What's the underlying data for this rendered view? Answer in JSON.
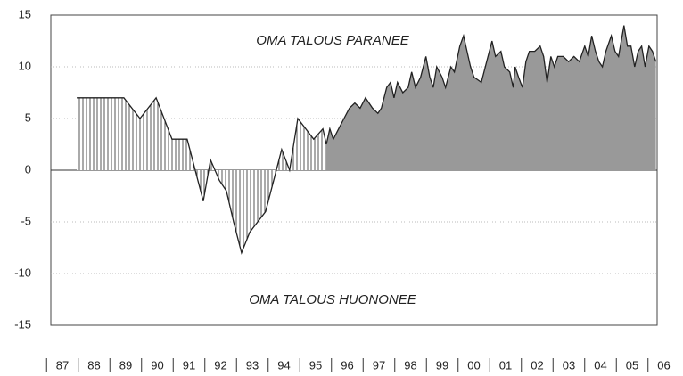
{
  "chart_data": {
    "type": "area",
    "annotations": [
      "OMA TALOUS PARANEE",
      "OMA TALOUS HUONONEE"
    ],
    "series": [
      {
        "fill": "hatch",
        "color": "#222",
        "x": [
          1987.95,
          1988.43,
          1988.94,
          1989.44,
          1989.95,
          1990.46,
          1990.96,
          1991.44,
          1991.95,
          1992.18,
          1992.46,
          1992.68,
          1992.91,
          1993.16,
          1993.42,
          1993.92,
          1994.43,
          1994.68,
          1994.94,
          1995.44,
          1995.73,
          1995.84
        ],
        "values": [
          7,
          7,
          7,
          7,
          5,
          7,
          3,
          3,
          -3,
          1,
          -1,
          -2,
          -5,
          -8,
          -6,
          -4,
          2,
          0,
          5,
          3,
          4,
          2.5
        ]
      },
      {
        "fill": "solid",
        "color": "#999",
        "x": [
          1995.84,
          1995.95,
          1996.06,
          1996.23,
          1996.4,
          1996.57,
          1996.74,
          1996.91,
          1997.08,
          1997.3,
          1997.47,
          1997.58,
          1997.75,
          1997.87,
          1997.98,
          1998.09,
          1998.26,
          1998.43,
          1998.54,
          1998.66,
          1998.82,
          1998.99,
          1999.11,
          1999.22,
          1999.33,
          1999.5,
          1999.61,
          1999.78,
          1999.89,
          2000.06,
          2000.18,
          2000.29,
          2000.4,
          2000.51,
          2000.74,
          2000.91,
          2001.08,
          2001.19,
          2001.36,
          2001.47,
          2001.64,
          2001.75,
          2001.81,
          2001.92,
          2002.04,
          2002.15,
          2002.26,
          2002.43,
          2002.6,
          2002.71,
          2002.82,
          2002.94,
          2003.05,
          2003.16,
          2003.33,
          2003.5,
          2003.67,
          2003.84,
          2004.01,
          2004.12,
          2004.23,
          2004.35,
          2004.46,
          2004.57,
          2004.68,
          2004.85,
          2004.97,
          2005.08,
          2005.25,
          2005.36,
          2005.47,
          2005.59,
          2005.7,
          2005.81,
          2005.92,
          2006.04,
          2006.15,
          2006.26
        ],
        "values": [
          2.5,
          4,
          3,
          4,
          5,
          6,
          6.5,
          6,
          7,
          6,
          5.5,
          6,
          8,
          8.5,
          7,
          8.5,
          7.5,
          8,
          9.5,
          8,
          9,
          11,
          9,
          8,
          10,
          9,
          8,
          10,
          9.5,
          12,
          13,
          11.5,
          10,
          9,
          8.5,
          10.5,
          12.5,
          11,
          11.5,
          10,
          9.5,
          8,
          10,
          9,
          8,
          10.5,
          11.5,
          11.5,
          12,
          11,
          8.5,
          11,
          10,
          11,
          11,
          10.5,
          11,
          10.5,
          12,
          11,
          13,
          11.5,
          10.5,
          10,
          11.5,
          13,
          11.5,
          11,
          14,
          12,
          12,
          10,
          11.5,
          12,
          10,
          12,
          11.5,
          10.5
        ]
      }
    ],
    "xlim": [
      1987.13,
      2006.3
    ],
    "xticks": [
      {
        "value": 1987.5,
        "label": "87"
      },
      {
        "value": 1988.5,
        "label": "88"
      },
      {
        "value": 1989.5,
        "label": "89"
      },
      {
        "value": 1990.5,
        "label": "90"
      },
      {
        "value": 1991.5,
        "label": "91"
      },
      {
        "value": 1992.5,
        "label": "92"
      },
      {
        "value": 1993.5,
        "label": "93"
      },
      {
        "value": 1994.5,
        "label": "94"
      },
      {
        "value": 1995.5,
        "label": "95"
      },
      {
        "value": 1996.5,
        "label": "96"
      },
      {
        "value": 1997.5,
        "label": "97"
      },
      {
        "value": 1998.5,
        "label": "98"
      },
      {
        "value": 1999.5,
        "label": "99"
      },
      {
        "value": 2000.5,
        "label": "00"
      },
      {
        "value": 2001.5,
        "label": "01"
      },
      {
        "value": 2002.5,
        "label": "02"
      },
      {
        "value": 2003.5,
        "label": "03"
      },
      {
        "value": 2004.5,
        "label": "04"
      },
      {
        "value": 2005.5,
        "label": "05"
      },
      {
        "value": 2006.5,
        "label": "06"
      }
    ],
    "ylim": [
      -15,
      15
    ],
    "yticks": [
      15,
      10,
      5,
      0,
      -5,
      -10,
      -15
    ],
    "grid": true
  }
}
